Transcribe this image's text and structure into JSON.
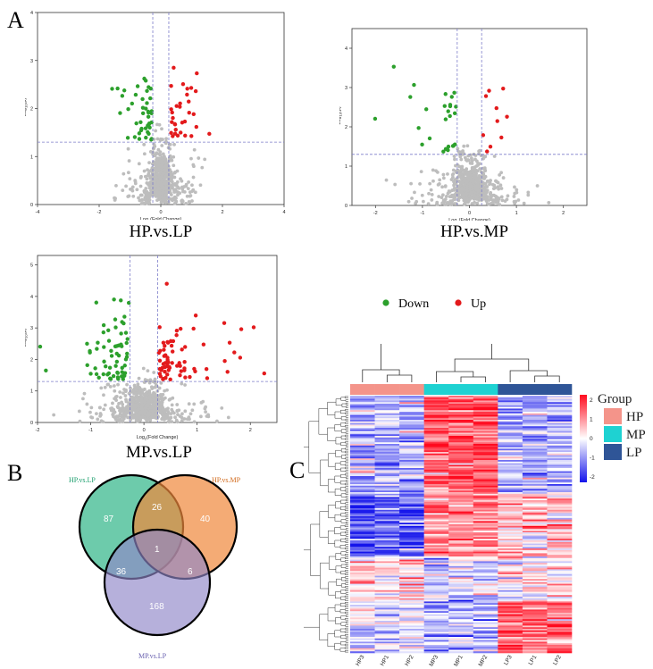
{
  "panels": {
    "a": "A",
    "b": "B",
    "c": "C"
  },
  "volcano_legend": {
    "down": "Down",
    "up": "Up",
    "down_color": "#2ca02c",
    "up_color": "#e31a1c"
  },
  "venn": {
    "sets": [
      {
        "name": "HP.vs.LP",
        "color": "#3cba8f"
      },
      {
        "name": "HP.vs.MP",
        "color": "#f0873a"
      },
      {
        "name": "MP.vs.LP",
        "color": "#8f86c8"
      }
    ],
    "counts": {
      "only_a": "87",
      "ab": "26",
      "only_b": "40",
      "abc": "1",
      "ac": "36",
      "bc": "6",
      "only_c": "168"
    }
  },
  "heatmap": {
    "title": "Group",
    "groups": [
      {
        "name": "HP",
        "color": "#f4948a"
      },
      {
        "name": "MP",
        "color": "#1ed2d2"
      },
      {
        "name": "LP",
        "color": "#2f5597"
      }
    ],
    "columns": [
      "HP3",
      "HP1",
      "HP2",
      "MP3",
      "MP1",
      "MP2",
      "LP3",
      "LP1",
      "LP2"
    ],
    "scale_ticks": [
      "2",
      "1",
      "0",
      "-1",
      "-2"
    ]
  },
  "chart_data": [
    {
      "type": "scatter",
      "title": "HP.vs.LP",
      "xlabel": "Log2(Fold Change)",
      "ylabel": "-Log10(p)",
      "xlim": [
        -4,
        4
      ],
      "ylim": [
        0,
        4
      ],
      "xticks": [
        "-4",
        "-2",
        "0",
        "2",
        "4"
      ],
      "yticks": [
        "0",
        "1",
        "2",
        "3",
        "4"
      ],
      "threshold_p": 1.3,
      "threshold_fc": [
        -0.26,
        0.26
      ]
    },
    {
      "type": "scatter",
      "title": "HP.vs.MP",
      "xlabel": "Log2(Fold Change)",
      "ylabel": "-Log10(p)",
      "xlim": [
        -2.5,
        2.5
      ],
      "ylim": [
        0,
        4.5
      ],
      "xticks": [
        "-2",
        "-1",
        "0",
        "1",
        "2"
      ],
      "yticks": [
        "0",
        "1",
        "2",
        "3",
        "4"
      ],
      "threshold_p": 1.3,
      "threshold_fc": [
        -0.26,
        0.26
      ]
    },
    {
      "type": "scatter",
      "title": "MP.vs.LP",
      "xlabel": "Log2(Fold Change)",
      "ylabel": "-Log10(p)",
      "xlim": [
        -2,
        2.5
      ],
      "ylim": [
        0,
        5.3
      ],
      "xticks": [
        "-2",
        "-1",
        "0",
        "1",
        "2"
      ],
      "yticks": [
        "0",
        "1",
        "2",
        "3",
        "4",
        "5"
      ],
      "threshold_p": 1.3,
      "threshold_fc": [
        -0.26,
        0.26
      ]
    }
  ]
}
